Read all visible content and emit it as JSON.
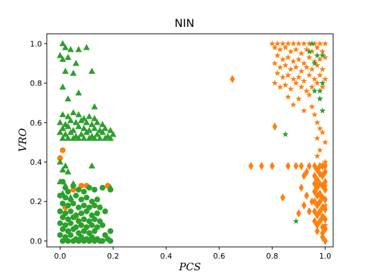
{
  "chart_data": {
    "type": "scatter",
    "title": "NIN",
    "xlabel": "PCS",
    "ylabel": "VRO",
    "xlim": [
      -0.05,
      1.03
    ],
    "ylim": [
      -0.03,
      1.05
    ],
    "xticks": [
      "0.0",
      "0.2",
      "0.4",
      "0.6",
      "0.8",
      "1.0"
    ],
    "yticks": [
      "0.0",
      "0.2",
      "0.4",
      "0.6",
      "0.8",
      "1.0"
    ],
    "grid": false,
    "legend": "none",
    "colors": {
      "orange": "#ff7f0e",
      "green": "#2ca02c"
    },
    "series": [
      {
        "marker": "circle",
        "color": "#ff7f0e",
        "points": [
          [
            0.0,
            0.42
          ],
          [
            0.01,
            0.46
          ],
          [
            0.05,
            0.26
          ],
          [
            0.08,
            0.28
          ],
          [
            0.1,
            0.28
          ],
          [
            0.18,
            0.28
          ],
          [
            0.02,
            0.17
          ],
          [
            0.06,
            0.12
          ]
        ]
      },
      {
        "marker": "diamond",
        "color": "#ff7f0e",
        "points": [
          [
            0.65,
            0.82
          ],
          [
            0.72,
            0.38
          ],
          [
            0.76,
            0.38
          ],
          [
            0.8,
            0.38
          ],
          [
            0.81,
            0.58
          ],
          [
            0.84,
            0.22
          ],
          [
            0.86,
            0.38
          ],
          [
            0.89,
            0.38
          ],
          [
            0.91,
            0.38
          ],
          [
            0.93,
            0.35
          ],
          [
            0.94,
            0.38
          ],
          [
            0.92,
            0.33
          ],
          [
            0.91,
            0.27
          ],
          [
            0.93,
            0.23
          ],
          [
            0.95,
            0.2
          ],
          [
            0.92,
            0.18
          ],
          [
            0.94,
            0.15
          ],
          [
            0.9,
            0.14
          ],
          [
            0.96,
            0.38
          ],
          [
            0.97,
            0.36
          ],
          [
            0.98,
            0.38
          ],
          [
            0.99,
            0.38
          ],
          [
            1.0,
            0.38
          ],
          [
            0.96,
            0.33
          ],
          [
            0.97,
            0.31
          ],
          [
            0.98,
            0.34
          ],
          [
            0.99,
            0.33
          ],
          [
            1.0,
            0.35
          ],
          [
            0.96,
            0.29
          ],
          [
            0.97,
            0.27
          ],
          [
            0.98,
            0.29
          ],
          [
            0.99,
            0.28
          ],
          [
            1.0,
            0.3
          ],
          [
            0.96,
            0.25
          ],
          [
            0.97,
            0.23
          ],
          [
            0.98,
            0.24
          ],
          [
            0.99,
            0.22
          ],
          [
            1.0,
            0.26
          ],
          [
            0.96,
            0.2
          ],
          [
            0.97,
            0.18
          ],
          [
            0.98,
            0.2
          ],
          [
            0.99,
            0.17
          ],
          [
            1.0,
            0.21
          ],
          [
            0.96,
            0.15
          ],
          [
            0.97,
            0.13
          ],
          [
            0.98,
            0.15
          ],
          [
            0.99,
            0.12
          ],
          [
            1.0,
            0.16
          ],
          [
            0.96,
            0.1
          ],
          [
            0.97,
            0.08
          ],
          [
            0.98,
            0.1
          ],
          [
            0.99,
            0.07
          ],
          [
            1.0,
            0.11
          ],
          [
            0.97,
            0.05
          ],
          [
            0.99,
            0.04
          ],
          [
            1.0,
            0.06
          ],
          [
            0.99,
            0.02
          ],
          [
            1.0,
            0.0
          ]
        ]
      },
      {
        "marker": "star",
        "color": "#ff7f0e",
        "points": [
          [
            0.8,
            1.0
          ],
          [
            0.82,
            1.0
          ],
          [
            0.84,
            1.0
          ],
          [
            0.86,
            1.0
          ],
          [
            0.88,
            1.0
          ],
          [
            0.9,
            1.0
          ],
          [
            0.92,
            1.0
          ],
          [
            0.94,
            1.0
          ],
          [
            0.96,
            1.0
          ],
          [
            0.98,
            1.0
          ],
          [
            1.0,
            1.0
          ],
          [
            0.81,
            0.98
          ],
          [
            0.83,
            0.97
          ],
          [
            0.85,
            0.98
          ],
          [
            0.87,
            0.96
          ],
          [
            0.89,
            0.97
          ],
          [
            0.91,
            0.95
          ],
          [
            0.93,
            0.97
          ],
          [
            0.95,
            0.96
          ],
          [
            0.97,
            0.98
          ],
          [
            0.99,
            0.96
          ],
          [
            0.82,
            0.94
          ],
          [
            0.84,
            0.92
          ],
          [
            0.86,
            0.93
          ],
          [
            0.88,
            0.91
          ],
          [
            0.9,
            0.92
          ],
          [
            0.92,
            0.9
          ],
          [
            0.94,
            0.93
          ],
          [
            0.96,
            0.91
          ],
          [
            0.98,
            0.92
          ],
          [
            1.0,
            0.93
          ],
          [
            0.81,
            0.9
          ],
          [
            0.83,
            0.88
          ],
          [
            0.85,
            0.89
          ],
          [
            0.87,
            0.87
          ],
          [
            0.89,
            0.88
          ],
          [
            0.91,
            0.86
          ],
          [
            0.93,
            0.88
          ],
          [
            0.95,
            0.87
          ],
          [
            0.97,
            0.89
          ],
          [
            0.99,
            0.87
          ],
          [
            0.82,
            0.85
          ],
          [
            0.84,
            0.83
          ],
          [
            0.86,
            0.84
          ],
          [
            0.88,
            0.82
          ],
          [
            0.9,
            0.83
          ],
          [
            0.92,
            0.81
          ],
          [
            0.94,
            0.84
          ],
          [
            0.96,
            0.82
          ],
          [
            0.98,
            0.84
          ],
          [
            1.0,
            0.82
          ],
          [
            0.81,
            0.8
          ],
          [
            0.83,
            0.78
          ],
          [
            0.85,
            0.79
          ],
          [
            0.87,
            0.77
          ],
          [
            0.89,
            0.8
          ],
          [
            0.91,
            0.78
          ],
          [
            0.93,
            0.76
          ],
          [
            0.95,
            0.78
          ],
          [
            0.97,
            0.8
          ],
          [
            0.99,
            0.78
          ],
          [
            0.86,
            0.73
          ],
          [
            0.9,
            0.72
          ],
          [
            0.94,
            0.74
          ],
          [
            0.98,
            0.72
          ],
          [
            0.88,
            0.69
          ],
          [
            0.95,
            0.68
          ],
          [
            0.92,
            0.66
          ],
          [
            0.96,
            0.64
          ],
          [
            0.97,
            0.6
          ],
          [
            0.98,
            0.57
          ],
          [
            0.99,
            0.55
          ],
          [
            0.97,
            0.52
          ],
          [
            1.0,
            0.5
          ],
          [
            0.98,
            0.46
          ],
          [
            0.97,
            0.43
          ],
          [
            1.0,
            0.4
          ],
          [
            0.99,
            0.34
          ],
          [
            1.0,
            0.28
          ],
          [
            0.98,
            0.23
          ],
          [
            1.0,
            0.18
          ],
          [
            0.99,
            0.13
          ],
          [
            1.0,
            0.08
          ]
        ]
      },
      {
        "marker": "triangle",
        "color": "#2ca02c",
        "points": [
          [
            0.01,
            1.0
          ],
          [
            0.02,
            0.98
          ],
          [
            0.04,
            0.97
          ],
          [
            0.07,
            0.97
          ],
          [
            0.1,
            0.98
          ],
          [
            0.0,
            0.94
          ],
          [
            0.01,
            0.92
          ],
          [
            0.03,
            0.93
          ],
          [
            0.06,
            0.9
          ],
          [
            0.02,
            0.86
          ],
          [
            0.05,
            0.85
          ],
          [
            0.01,
            0.78
          ],
          [
            0.12,
            0.86
          ],
          [
            0.03,
            0.72
          ],
          [
            0.07,
            0.75
          ],
          [
            0.13,
            0.68
          ],
          [
            0.01,
            0.64
          ],
          [
            0.03,
            0.63
          ],
          [
            0.05,
            0.65
          ],
          [
            0.07,
            0.64
          ],
          [
            0.09,
            0.62
          ],
          [
            0.11,
            0.63
          ],
          [
            0.13,
            0.62
          ],
          [
            0.0,
            0.6
          ],
          [
            0.02,
            0.59
          ],
          [
            0.04,
            0.61
          ],
          [
            0.06,
            0.6
          ],
          [
            0.08,
            0.61
          ],
          [
            0.1,
            0.6
          ],
          [
            0.12,
            0.59
          ],
          [
            0.14,
            0.6
          ],
          [
            0.16,
            0.59
          ],
          [
            0.01,
            0.57
          ],
          [
            0.03,
            0.58
          ],
          [
            0.05,
            0.56
          ],
          [
            0.07,
            0.58
          ],
          [
            0.09,
            0.57
          ],
          [
            0.11,
            0.56
          ],
          [
            0.13,
            0.57
          ],
          [
            0.15,
            0.56
          ],
          [
            0.17,
            0.57
          ],
          [
            0.19,
            0.56
          ],
          [
            0.0,
            0.55
          ],
          [
            0.02,
            0.54
          ],
          [
            0.04,
            0.55
          ],
          [
            0.06,
            0.53
          ],
          [
            0.08,
            0.54
          ],
          [
            0.1,
            0.55
          ],
          [
            0.12,
            0.53
          ],
          [
            0.14,
            0.54
          ],
          [
            0.16,
            0.55
          ],
          [
            0.18,
            0.53
          ],
          [
            0.2,
            0.54
          ],
          [
            0.01,
            0.52
          ],
          [
            0.03,
            0.52
          ],
          [
            0.05,
            0.52
          ],
          [
            0.07,
            0.52
          ],
          [
            0.09,
            0.52
          ],
          [
            0.11,
            0.52
          ],
          [
            0.13,
            0.52
          ],
          [
            0.15,
            0.52
          ],
          [
            0.17,
            0.52
          ],
          [
            0.19,
            0.52
          ],
          [
            0.0,
            0.4
          ],
          [
            0.02,
            0.38
          ],
          [
            0.01,
            0.36
          ],
          [
            0.03,
            0.35
          ],
          [
            0.12,
            0.38
          ],
          [
            0.0,
            0.3
          ],
          [
            0.02,
            0.28
          ],
          [
            0.05,
            0.29
          ],
          [
            0.01,
            0.24
          ],
          [
            0.04,
            0.22
          ],
          [
            0.19,
            0.27
          ]
        ]
      },
      {
        "marker": "circle",
        "color": "#2ca02c",
        "points": [
          [
            0.01,
            0.3
          ],
          [
            0.02,
            0.27
          ],
          [
            0.03,
            0.25
          ],
          [
            0.05,
            0.28
          ],
          [
            0.07,
            0.26
          ],
          [
            0.09,
            0.25
          ],
          [
            0.11,
            0.27
          ],
          [
            0.13,
            0.26
          ],
          [
            0.16,
            0.27
          ],
          [
            0.19,
            0.26
          ],
          [
            0.0,
            0.23
          ],
          [
            0.02,
            0.22
          ],
          [
            0.04,
            0.21
          ],
          [
            0.06,
            0.23
          ],
          [
            0.08,
            0.21
          ],
          [
            0.1,
            0.22
          ],
          [
            0.12,
            0.2
          ],
          [
            0.14,
            0.21
          ],
          [
            0.01,
            0.19
          ],
          [
            0.03,
            0.18
          ],
          [
            0.05,
            0.19
          ],
          [
            0.07,
            0.17
          ],
          [
            0.09,
            0.18
          ],
          [
            0.11,
            0.17
          ],
          [
            0.13,
            0.18
          ],
          [
            0.15,
            0.17
          ],
          [
            0.0,
            0.15
          ],
          [
            0.02,
            0.14
          ],
          [
            0.04,
            0.15
          ],
          [
            0.06,
            0.13
          ],
          [
            0.08,
            0.14
          ],
          [
            0.1,
            0.15
          ],
          [
            0.12,
            0.13
          ],
          [
            0.14,
            0.14
          ],
          [
            0.17,
            0.15
          ],
          [
            0.01,
            0.12
          ],
          [
            0.03,
            0.11
          ],
          [
            0.05,
            0.12
          ],
          [
            0.07,
            0.1
          ],
          [
            0.09,
            0.11
          ],
          [
            0.11,
            0.1
          ],
          [
            0.13,
            0.11
          ],
          [
            0.15,
            0.1
          ],
          [
            0.0,
            0.09
          ],
          [
            0.02,
            0.08
          ],
          [
            0.04,
            0.09
          ],
          [
            0.06,
            0.07
          ],
          [
            0.08,
            0.08
          ],
          [
            0.1,
            0.07
          ],
          [
            0.12,
            0.08
          ],
          [
            0.14,
            0.07
          ],
          [
            0.16,
            0.08
          ],
          [
            0.01,
            0.06
          ],
          [
            0.03,
            0.05
          ],
          [
            0.05,
            0.06
          ],
          [
            0.07,
            0.04
          ],
          [
            0.09,
            0.05
          ],
          [
            0.11,
            0.04
          ],
          [
            0.13,
            0.05
          ],
          [
            0.0,
            0.03
          ],
          [
            0.02,
            0.02
          ],
          [
            0.04,
            0.03
          ],
          [
            0.06,
            0.01
          ],
          [
            0.08,
            0.02
          ],
          [
            0.1,
            0.01
          ],
          [
            0.12,
            0.02
          ],
          [
            0.14,
            0.01
          ],
          [
            0.16,
            0.0
          ],
          [
            0.18,
            0.01
          ],
          [
            0.19,
            0.0
          ],
          [
            0.01,
            0.0
          ],
          [
            0.03,
            0.0
          ],
          [
            0.05,
            0.0
          ],
          [
            0.07,
            0.0
          ],
          [
            0.09,
            0.0
          ],
          [
            0.11,
            0.0
          ],
          [
            0.13,
            0.0
          ],
          [
            0.15,
            0.0
          ],
          [
            0.17,
            0.03
          ],
          [
            0.19,
            0.05
          ]
        ]
      },
      {
        "marker": "star",
        "color": "#2ca02c",
        "points": [
          [
            0.95,
            1.0
          ],
          [
            0.94,
            0.96
          ],
          [
            0.97,
            0.94
          ],
          [
            0.99,
            0.94
          ],
          [
            0.96,
            0.9
          ],
          [
            0.99,
            0.8
          ],
          [
            0.96,
            0.76
          ],
          [
            0.98,
            0.76
          ],
          [
            0.98,
            0.72
          ],
          [
            0.99,
            0.66
          ],
          [
            0.85,
            0.54
          ],
          [
            0.89,
            0.1
          ]
        ]
      }
    ]
  }
}
